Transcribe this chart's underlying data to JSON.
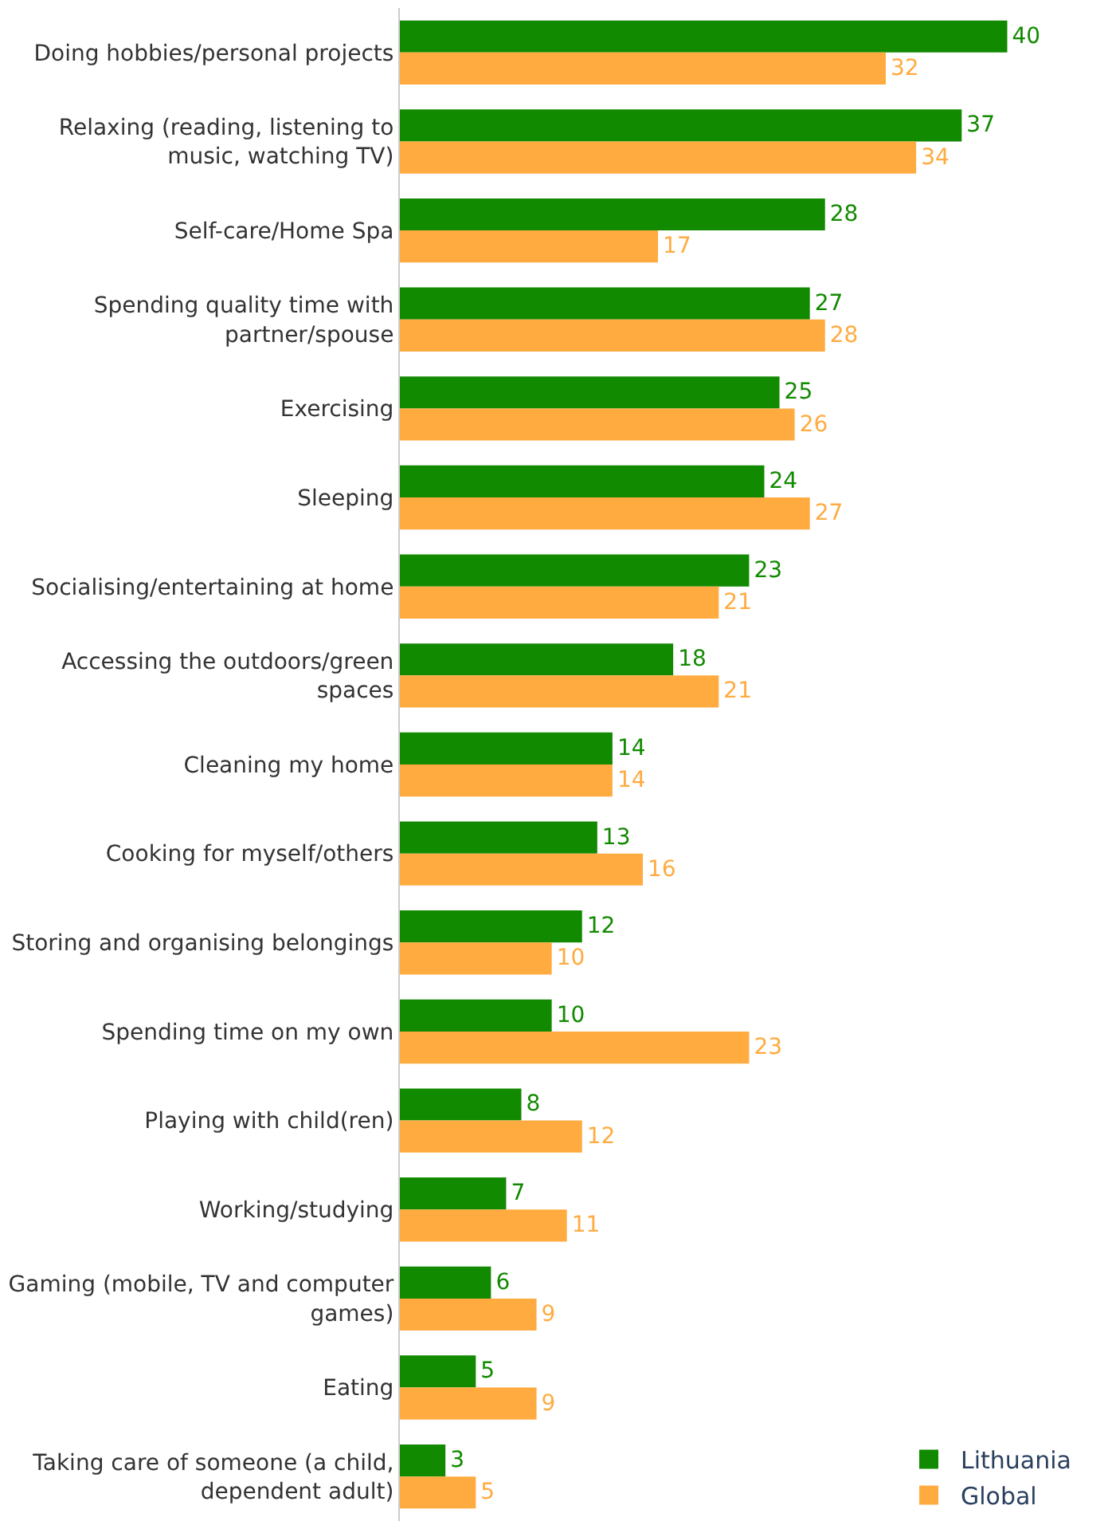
{
  "chart_data": {
    "type": "bar",
    "orientation": "horizontal",
    "data_labels": true,
    "legend": "bottom right",
    "categories": [
      "Doing hobbies/personal projects",
      "Relaxing (reading, listening to music, watching TV)",
      "Self-care/Home Spa",
      "Spending quality time with partner/spouse",
      "Exercising",
      "Sleeping",
      "Socialising/entertaining at home",
      "Accessing the outdoors/green spaces",
      "Cleaning my home",
      "Cooking for myself/others",
      "Storing and organising belongings",
      "Spending time on my own",
      "Playing with child(ren)",
      "Working/studying",
      "Gaming (mobile, TV and computer games)",
      "Eating",
      "Taking care of someone (a child, dependent adult)"
    ],
    "series": [
      {
        "name": "Lithuania",
        "color": "#128a00",
        "values": [
          40,
          37,
          28,
          27,
          25,
          24,
          23,
          18,
          14,
          13,
          12,
          10,
          8,
          7,
          6,
          5,
          3
        ]
      },
      {
        "name": "Global",
        "color": "#ffab40",
        "values": [
          32,
          34,
          17,
          28,
          26,
          27,
          21,
          21,
          14,
          16,
          10,
          23,
          12,
          11,
          9,
          9,
          5
        ]
      }
    ]
  }
}
